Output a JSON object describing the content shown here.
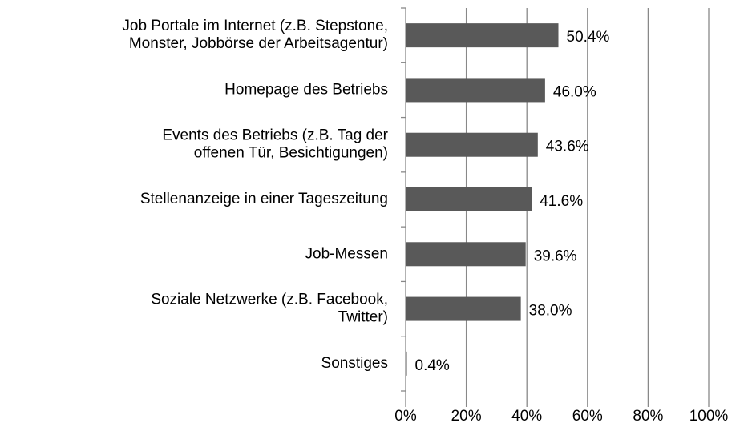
{
  "chart_data": {
    "type": "bar",
    "orientation": "horizontal",
    "categories": [
      "Job Portale im Internet (z.B. Stepstone,\nMonster, Jobbörse der Arbeitsagentur)",
      "Homepage des Betriebs",
      "Events des Betriebs (z.B. Tag der\noffenen Tür, Besichtigungen)",
      "Stellenanzeige in einer Tageszeitung",
      "Job-Messen",
      "Soziale Netzwerke (z.B. Facebook,\nTwitter)",
      "Sonstiges"
    ],
    "values": [
      50.4,
      46.0,
      43.6,
      41.6,
      39.6,
      38.0,
      0.4
    ],
    "value_labels": [
      "50.4%",
      "46.0%",
      "43.6%",
      "41.6%",
      "39.6%",
      "38.0%",
      "0.4%"
    ],
    "color": "#595959",
    "xlim": [
      0,
      100
    ],
    "xticks": [
      {
        "value": 0,
        "label": "0%"
      },
      {
        "value": 20,
        "label": "20%"
      },
      {
        "value": 40,
        "label": "40%"
      },
      {
        "value": 60,
        "label": "60%"
      },
      {
        "value": 80,
        "label": "80%"
      },
      {
        "value": 100,
        "label": "100%"
      }
    ],
    "grid": true
  }
}
